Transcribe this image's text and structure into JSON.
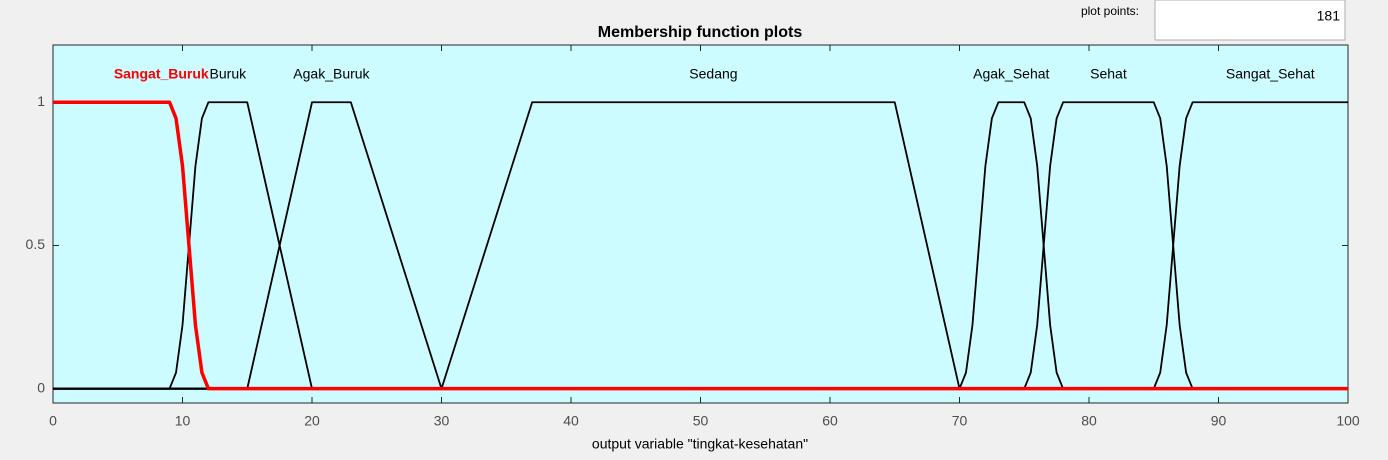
{
  "ui": {
    "plot_points_label": "plot points:",
    "plot_points_value": 181
  },
  "chart_data": {
    "type": "line",
    "title": "Membership function plots",
    "xlabel": "output variable \"tingkat-kesehatan\"",
    "xlim": [
      0,
      100
    ],
    "ylim": [
      -0.05,
      1.2
    ],
    "xticks": [
      0,
      10,
      20,
      30,
      40,
      50,
      60,
      70,
      80,
      90,
      100
    ],
    "yticks": [
      0,
      0.5,
      1
    ],
    "series": [
      {
        "name": "Buruk",
        "color": "#000000",
        "x": [
          0,
          9,
          9.5,
          10,
          10.5,
          11,
          11.5,
          12,
          15,
          20,
          100
        ],
        "values": [
          0,
          0,
          0.056,
          0.222,
          0.5,
          0.778,
          0.944,
          1,
          1,
          0,
          0
        ]
      },
      {
        "name": "Agak_Buruk",
        "color": "#000000",
        "x": [
          0,
          15,
          20,
          23,
          30,
          100
        ],
        "values": [
          0,
          0,
          1,
          1,
          0,
          0
        ]
      },
      {
        "name": "Sedang",
        "color": "#000000",
        "x": [
          0,
          30,
          37,
          65,
          70,
          100
        ],
        "values": [
          0,
          0,
          1,
          1,
          0,
          0
        ]
      },
      {
        "name": "Agak_Sehat",
        "color": "#000000",
        "x": [
          0,
          70,
          70.5,
          71,
          71.5,
          72,
          72.5,
          73,
          75,
          75.5,
          76,
          76.5,
          77,
          77.5,
          78,
          100
        ],
        "values": [
          0,
          0,
          0.056,
          0.222,
          0.5,
          0.778,
          0.944,
          1,
          1,
          0.944,
          0.778,
          0.5,
          0.222,
          0.056,
          0,
          0
        ]
      },
      {
        "name": "Sehat",
        "color": "#000000",
        "x": [
          0,
          75,
          75.5,
          76,
          76.5,
          77,
          77.5,
          78,
          85,
          85.5,
          86,
          86.5,
          87,
          87.5,
          88,
          100
        ],
        "values": [
          0,
          0,
          0.056,
          0.222,
          0.5,
          0.778,
          0.944,
          1,
          1,
          0.944,
          0.778,
          0.5,
          0.222,
          0.056,
          0,
          0
        ]
      },
      {
        "name": "Sangat_Sehat",
        "color": "#000000",
        "x": [
          0,
          85,
          85.5,
          86,
          86.5,
          87,
          87.5,
          88,
          100
        ],
        "values": [
          0,
          0,
          0.056,
          0.222,
          0.5,
          0.778,
          0.944,
          1,
          1
        ]
      },
      {
        "name": "Sangat_Buruk",
        "color": "#ff0000",
        "x": [
          0,
          9,
          9.5,
          10,
          10.5,
          11,
          11.5,
          12,
          100
        ],
        "values": [
          1,
          1,
          0.944,
          0.778,
          0.5,
          0.222,
          0.056,
          0,
          0
        ]
      }
    ]
  }
}
